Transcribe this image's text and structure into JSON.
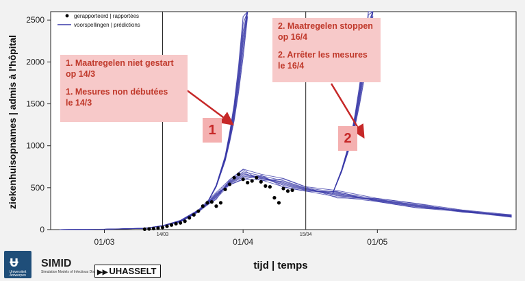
{
  "chart_data": {
    "type": "line",
    "title": "",
    "xlabel": "tijd | temps",
    "ylabel": "ziekenhuisopnames | admis à l'hôpital",
    "ylim": [
      0,
      2600
    ],
    "yticks": [
      0,
      500,
      1000,
      1500,
      2000,
      2500
    ],
    "xlim": [
      "2020-02-18",
      "2020-06-01"
    ],
    "xticks": [
      {
        "date": "2020-03-01",
        "label": "01/03"
      },
      {
        "date": "2020-04-01",
        "label": "01/04"
      },
      {
        "date": "2020-05-01",
        "label": "01/05"
      }
    ],
    "vlines": [
      {
        "date": "2020-03-14",
        "label": "14/03"
      },
      {
        "date": "2020-04-15",
        "label": "15/04"
      }
    ],
    "legend": {
      "placement": "top-left",
      "entries": [
        {
          "label": "gerapporteerd | rapportées",
          "kind": "points",
          "color": "#000000"
        },
        {
          "label": "voorspellingen | prédictions",
          "kind": "line",
          "color": "#3a3aa8"
        }
      ]
    },
    "reported": [
      {
        "x": "2020-03-10",
        "y": 5
      },
      {
        "x": "2020-03-11",
        "y": 8
      },
      {
        "x": "2020-03-12",
        "y": 12
      },
      {
        "x": "2020-03-13",
        "y": 18
      },
      {
        "x": "2020-03-14",
        "y": 25
      },
      {
        "x": "2020-03-15",
        "y": 40
      },
      {
        "x": "2020-03-16",
        "y": 55
      },
      {
        "x": "2020-03-17",
        "y": 70
      },
      {
        "x": "2020-03-18",
        "y": 80
      },
      {
        "x": "2020-03-19",
        "y": 100
      },
      {
        "x": "2020-03-20",
        "y": 140
      },
      {
        "x": "2020-03-21",
        "y": 175
      },
      {
        "x": "2020-03-22",
        "y": 220
      },
      {
        "x": "2020-03-23",
        "y": 280
      },
      {
        "x": "2020-03-24",
        "y": 320
      },
      {
        "x": "2020-03-25",
        "y": 330
      },
      {
        "x": "2020-03-26",
        "y": 280
      },
      {
        "x": "2020-03-27",
        "y": 320
      },
      {
        "x": "2020-03-28",
        "y": 480
      },
      {
        "x": "2020-03-29",
        "y": 540
      },
      {
        "x": "2020-03-30",
        "y": 620
      },
      {
        "x": "2020-03-31",
        "y": 660
      },
      {
        "x": "2020-04-01",
        "y": 600
      },
      {
        "x": "2020-04-02",
        "y": 560
      },
      {
        "x": "2020-04-03",
        "y": 580
      },
      {
        "x": "2020-04-04",
        "y": 620
      },
      {
        "x": "2020-04-05",
        "y": 570
      },
      {
        "x": "2020-04-06",
        "y": 520
      },
      {
        "x": "2020-04-07",
        "y": 510
      },
      {
        "x": "2020-04-08",
        "y": 380
      },
      {
        "x": "2020-04-09",
        "y": 320
      },
      {
        "x": "2020-04-10",
        "y": 490
      },
      {
        "x": "2020-04-11",
        "y": 460
      },
      {
        "x": "2020-04-12",
        "y": 470
      }
    ],
    "prediction_band": {
      "x": [
        "2020-02-20",
        "2020-03-01",
        "2020-03-10",
        "2020-03-14",
        "2020-03-18",
        "2020-03-22",
        "2020-03-26",
        "2020-03-29",
        "2020-04-01",
        "2020-04-05",
        "2020-04-10",
        "2020-04-15",
        "2020-04-22",
        "2020-05-01",
        "2020-05-10",
        "2020-05-20",
        "2020-05-31"
      ],
      "center": [
        0,
        5,
        15,
        45,
        100,
        220,
        400,
        560,
        650,
        620,
        550,
        480,
        420,
        350,
        280,
        220,
        160
      ]
    },
    "scenario_lines": [
      {
        "label": "1",
        "x": [
          "2020-03-24",
          "2020-03-26",
          "2020-03-28",
          "2020-03-29",
          "2020-03-30",
          "2020-03-31",
          "2020-04-01",
          "2020-04-02"
        ],
        "center": [
          320,
          520,
          850,
          1100,
          1400,
          1800,
          2300,
          2900
        ]
      },
      {
        "label": "2",
        "x": [
          "2020-04-21",
          "2020-04-23",
          "2020-04-25",
          "2020-04-26",
          "2020-04-27",
          "2020-04-28",
          "2020-04-29",
          "2020-04-30"
        ],
        "center": [
          430,
          700,
          1050,
          1300,
          1600,
          1950,
          2400,
          2900
        ]
      }
    ],
    "annotations": [
      {
        "key": "scenario1",
        "lines": [
          "1. Maatregelen niet gestart",
          "op 14/3",
          "",
          "1. Mesures non débutées",
          "le 14/3"
        ],
        "marker": "1"
      },
      {
        "key": "scenario2",
        "lines": [
          "2. Maatregelen stoppen",
          "op 16/4",
          "",
          "2. Arrêter les mesures",
          "le 16/4"
        ],
        "marker": "2"
      }
    ],
    "colors": {
      "prediction": "#3a3aa8",
      "reported": "#000000",
      "arrow": "#c62828",
      "note_bg": "#f7c9c9"
    }
  },
  "footer": {
    "university": "Universiteit Antwerpen",
    "simid": "SIMID",
    "simid_sub": "Simulation Models of Infectious Diseases",
    "uhasselt": "UHASSELT",
    "uhasselt_icon": "play-forward-icon",
    "university_icon": "university-logo-icon"
  }
}
